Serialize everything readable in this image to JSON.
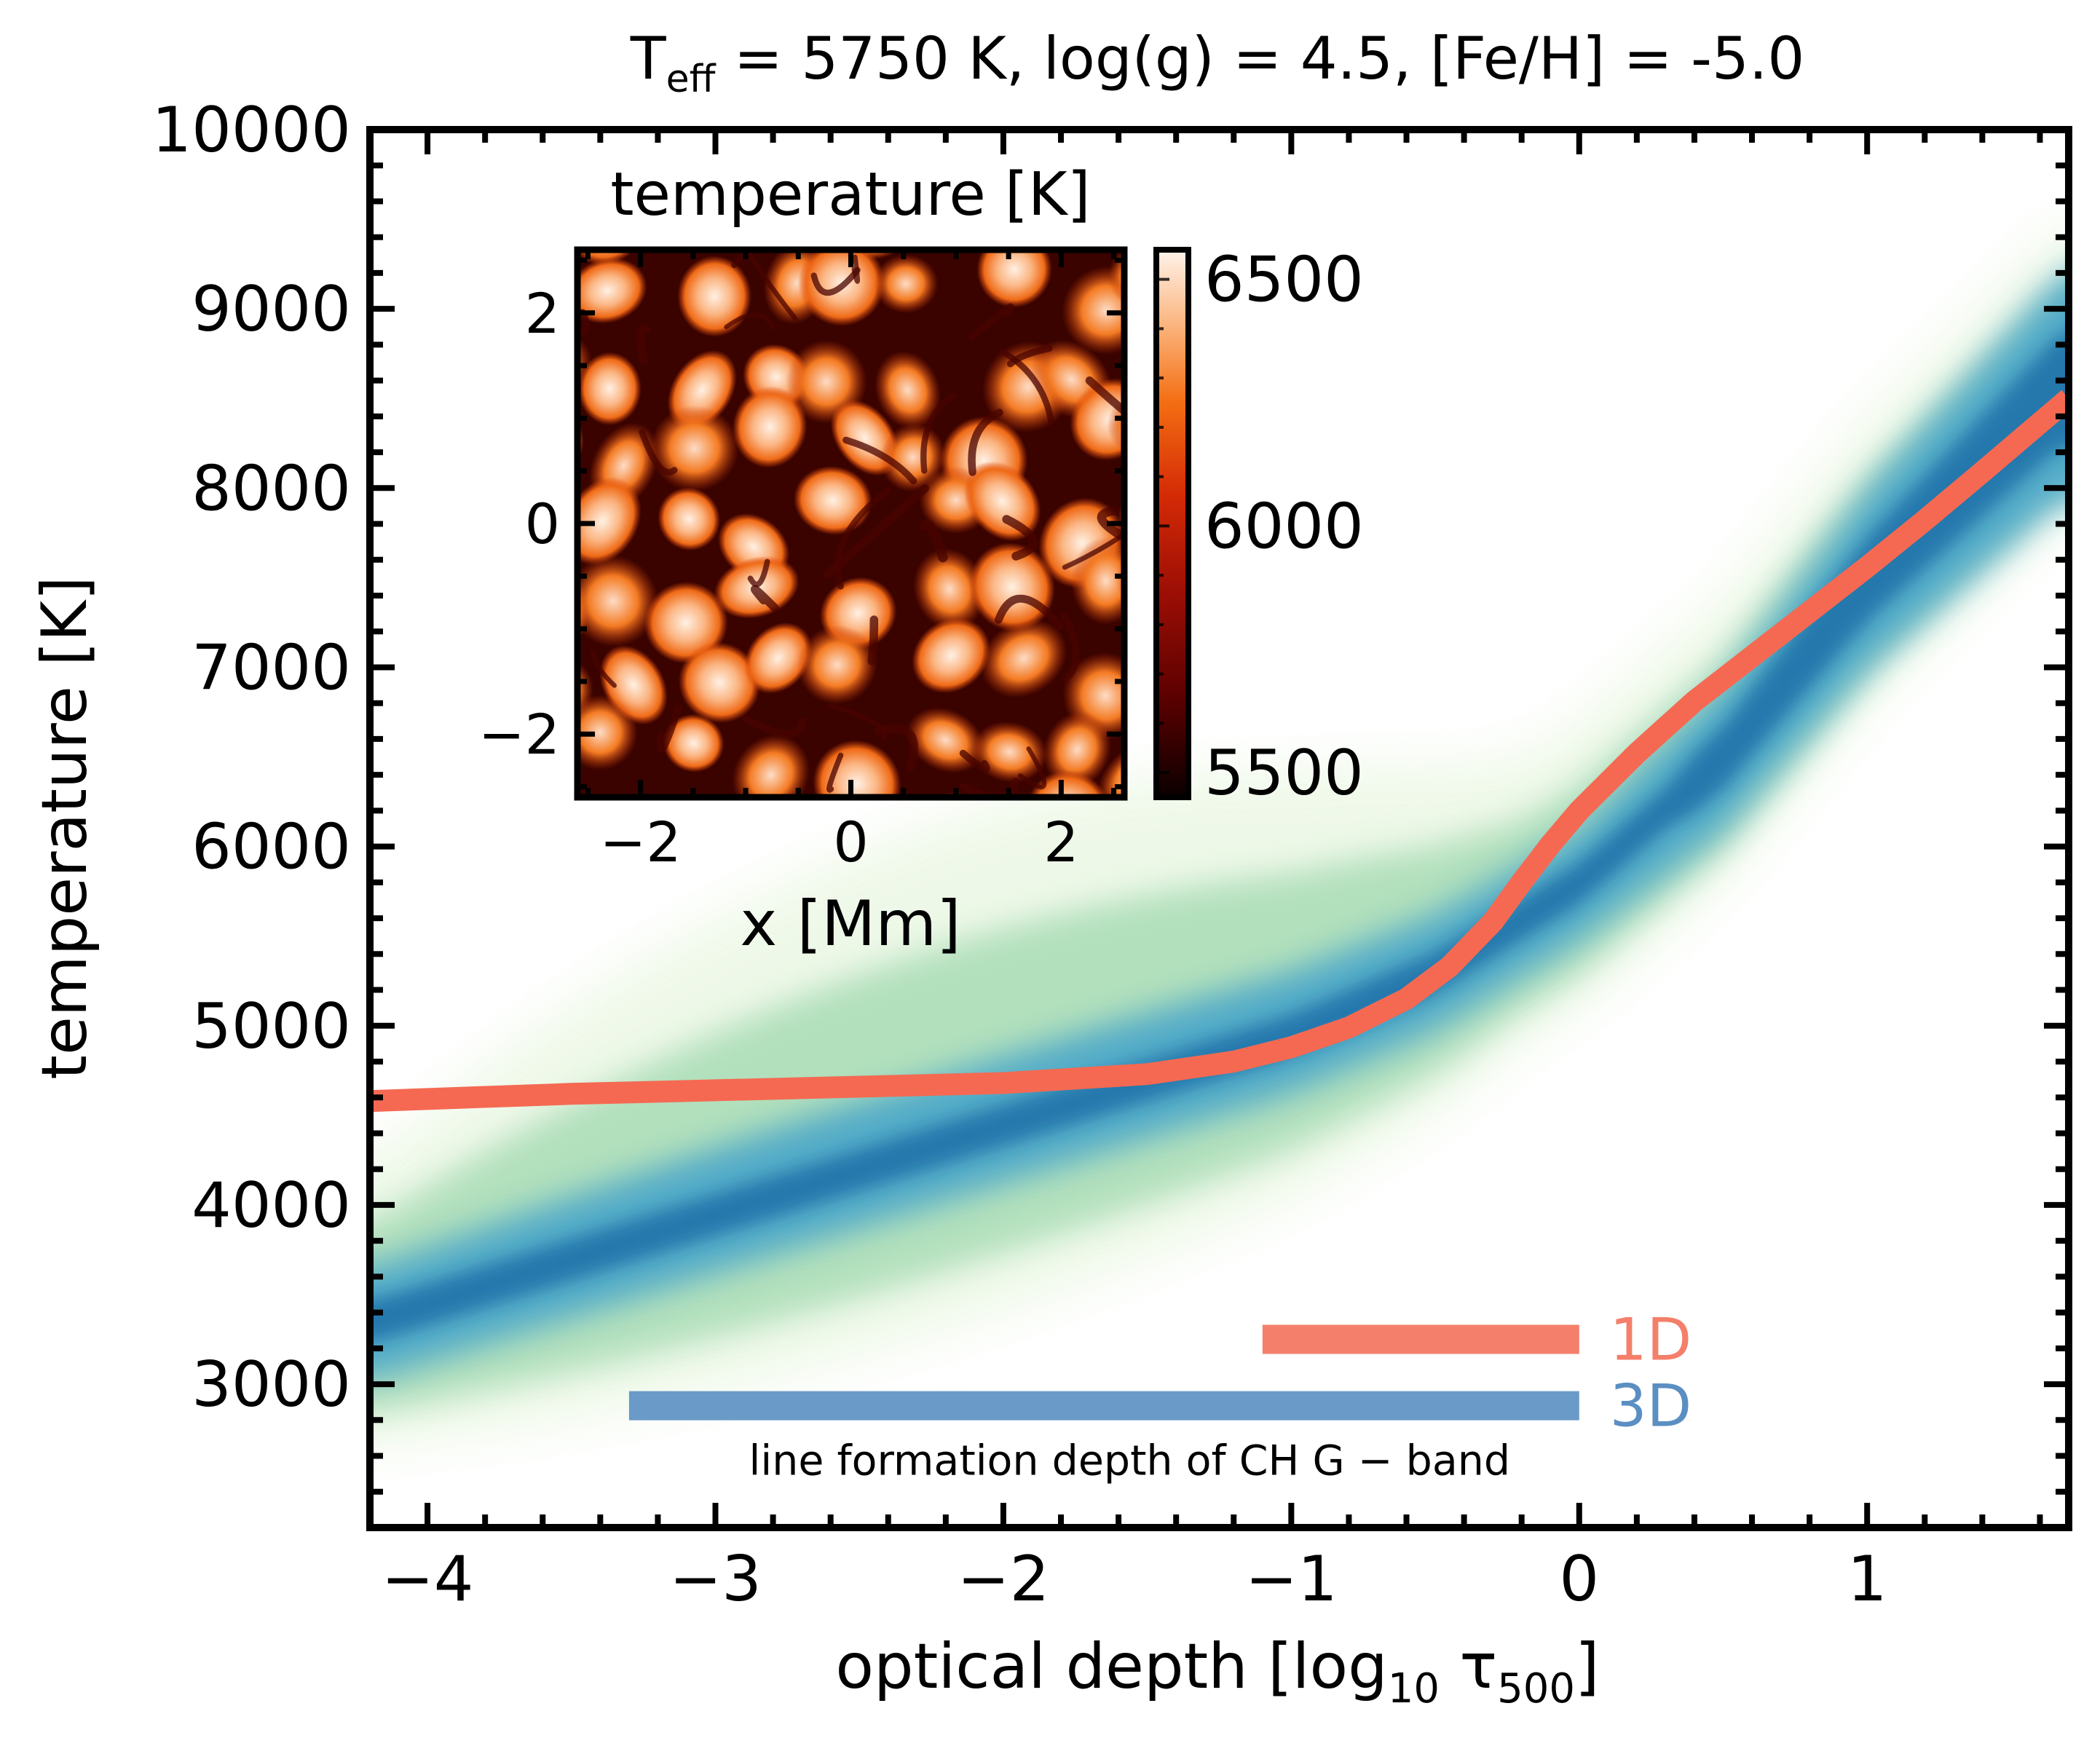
{
  "chart_data": {
    "type": "heatmap",
    "title": {
      "prefix": "T",
      "subscript": "eff",
      "rest": " = 5750 K,  log(g) = 4.5,  [Fe/H] = -5.0"
    },
    "xlabel": {
      "prefix": "optical depth [log",
      "sub1": "10",
      "tau": " τ",
      "sub2": "500",
      "suffix": "]"
    },
    "ylabel": "temperature [K]",
    "xlim": [
      -4.2,
      1.7
    ],
    "ylim": [
      2200,
      10000
    ],
    "xticks": [
      -4,
      -3,
      -2,
      -1,
      0,
      1
    ],
    "xtick_labels": [
      "−4",
      "−3",
      "−2",
      "−1",
      "0",
      "1"
    ],
    "yticks": [
      3000,
      4000,
      5000,
      6000,
      7000,
      8000,
      9000,
      10000
    ],
    "ytick_labels": [
      "3000",
      "4000",
      "5000",
      "6000",
      "7000",
      "8000",
      "9000",
      "10000"
    ],
    "series": [
      {
        "name": "1D",
        "type": "line",
        "color": "#f56952",
        "x": [
          -4.2,
          -3.5,
          -3.0,
          -2.5,
          -2.0,
          -1.5,
          -1.2,
          -1.0,
          -0.8,
          -0.6,
          -0.45,
          -0.3,
          -0.2,
          -0.1,
          0.0,
          0.2,
          0.4,
          0.6,
          0.8,
          1.0,
          1.2,
          1.4,
          1.7
        ],
        "y": [
          4580,
          4620,
          4640,
          4660,
          4680,
          4730,
          4800,
          4880,
          4990,
          5150,
          5330,
          5580,
          5800,
          6010,
          6200,
          6520,
          6810,
          7060,
          7310,
          7560,
          7820,
          8090,
          8500
        ]
      },
      {
        "name": "3D",
        "type": "density",
        "color": "#2c7fb8",
        "ridge_x": [
          -4.2,
          -3.5,
          -3.0,
          -2.5,
          -2.0,
          -1.5,
          -1.0,
          -0.5,
          0.0,
          0.5,
          1.0,
          1.7
        ],
        "ridge_y": [
          3350,
          3700,
          3950,
          4200,
          4450,
          4700,
          4950,
          5300,
          5800,
          6500,
          7500,
          8600
        ]
      }
    ],
    "annotations": {
      "band_label": "line formation depth of CH G − band",
      "bars": [
        {
          "label": "1D",
          "color": "#f47f6a",
          "x_start": -1.1,
          "x_end": 0.0,
          "y": 3250
        },
        {
          "label": "3D",
          "color": "#6a9ac7",
          "x_start": -3.3,
          "x_end": 0.0,
          "y": 2880
        }
      ]
    },
    "inset": {
      "type": "heatmap",
      "title": "temperature [K]",
      "xlabel": "x [Mm]",
      "xlim": [
        -2.6,
        2.6
      ],
      "ylim": [
        -2.6,
        2.6
      ],
      "xticks": [
        -2,
        0,
        2
      ],
      "xtick_labels": [
        "−2",
        "0",
        "2"
      ],
      "yticks": [
        -2,
        0,
        2
      ],
      "ytick_labels": [
        "−2",
        "0",
        "2"
      ],
      "colorbar": {
        "range": [
          5450,
          6560
        ],
        "ticks": [
          5500,
          6000,
          6500
        ],
        "tick_labels": [
          "5500",
          "6000",
          "6500"
        ]
      }
    },
    "grid": false,
    "legend": "bottom-right"
  }
}
